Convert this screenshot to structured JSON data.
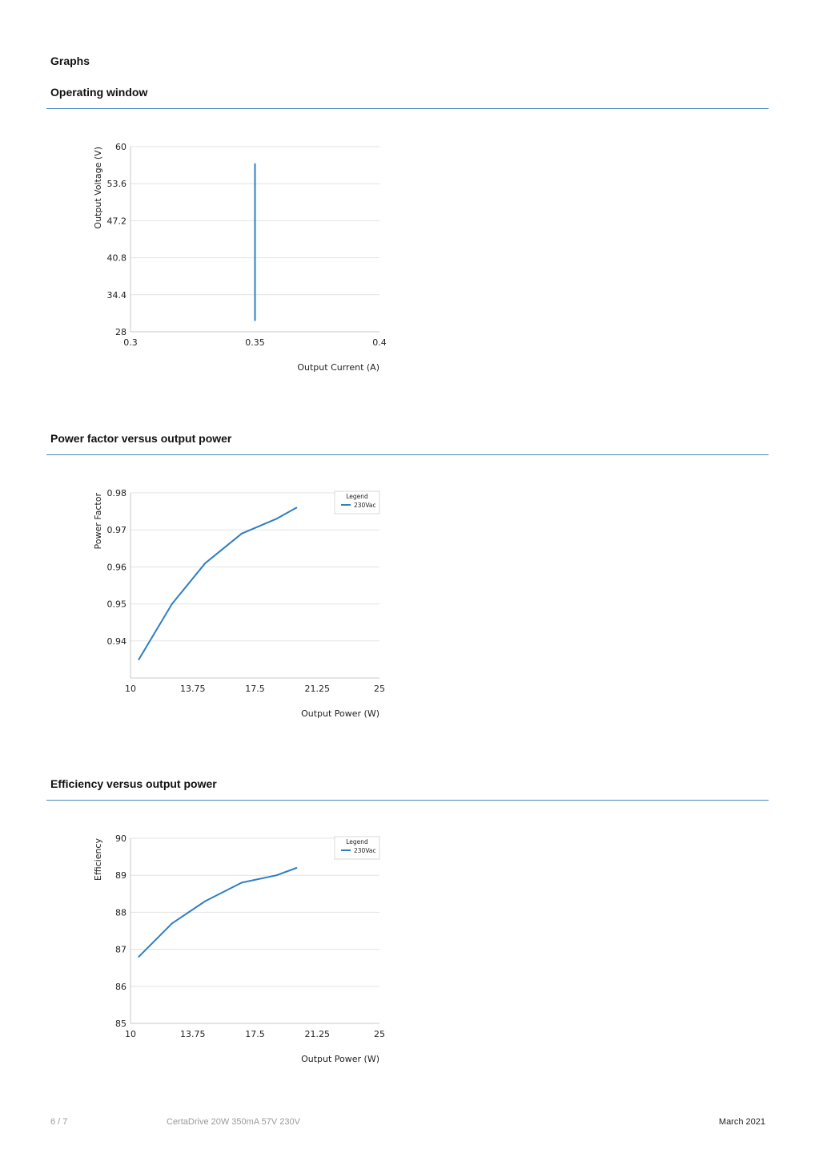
{
  "page": {
    "heading": "Graphs",
    "accent_color": "#4a88c0",
    "series_color": "#2f7fc1"
  },
  "sections": [
    {
      "title": "Operating window"
    },
    {
      "title": "Power factor versus output power"
    },
    {
      "title": "Efficiency versus output power"
    }
  ],
  "chart_data": [
    {
      "type": "line",
      "title": "",
      "xlabel": "Output Current (A)",
      "ylabel": "Output Voltage (V)",
      "xlim": [
        0.3,
        0.4
      ],
      "ylim": [
        28,
        60
      ],
      "x_ticks": [
        "0.3",
        "0.35",
        "0.4"
      ],
      "y_ticks": [
        "60",
        "53.6",
        "47.2",
        "40.8",
        "34.4",
        "28"
      ],
      "grid": true,
      "legend": null,
      "series": [
        {
          "x": [
            0.35,
            0.35
          ],
          "y": [
            30,
            57
          ]
        }
      ]
    },
    {
      "type": "line",
      "title": "",
      "xlabel": "Output Power (W)",
      "ylabel": "Power Factor",
      "xlim": [
        10,
        25
      ],
      "ylim": [
        0.93,
        0.98
      ],
      "x_ticks": [
        "10",
        "13.75",
        "17.5",
        "21.25",
        "25"
      ],
      "y_ticks": [
        "0.98",
        "0.97",
        "0.96",
        "0.95",
        "0.94"
      ],
      "grid": true,
      "legend": {
        "title": "Legend",
        "placement": "top-right"
      },
      "series": [
        {
          "name": "230Vac",
          "x": [
            10.5,
            12.5,
            14.5,
            16.7,
            18.8,
            20
          ],
          "y": [
            0.935,
            0.95,
            0.961,
            0.969,
            0.973,
            0.976
          ]
        }
      ]
    },
    {
      "type": "line",
      "title": "",
      "xlabel": "Output Power (W)",
      "ylabel": "Efficiency",
      "xlim": [
        10,
        25
      ],
      "ylim": [
        85,
        90
      ],
      "x_ticks": [
        "10",
        "13.75",
        "17.5",
        "21.25",
        "25"
      ],
      "y_ticks": [
        "90",
        "89",
        "88",
        "87",
        "86",
        "85"
      ],
      "grid": true,
      "legend": {
        "title": "Legend",
        "placement": "top-right"
      },
      "series": [
        {
          "name": "230Vac",
          "x": [
            10.5,
            12.5,
            14.5,
            16.7,
            18.8,
            20
          ],
          "y": [
            86.8,
            87.7,
            88.3,
            88.8,
            89.0,
            89.2
          ]
        }
      ]
    }
  ],
  "footer": {
    "page_number": "6 / 7",
    "product": "CertaDrive 20W 350mA 57V 230V",
    "date": "March 2021"
  }
}
